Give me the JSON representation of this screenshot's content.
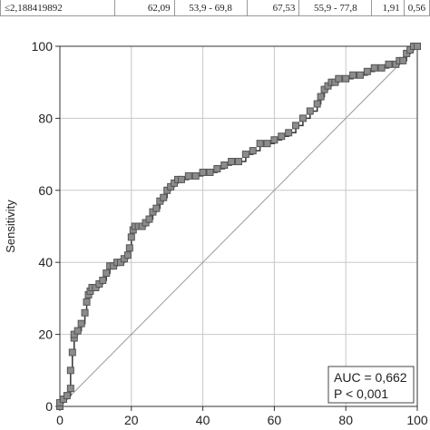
{
  "table_row": {
    "criterion": "≤2,188419892",
    "sensitivity": "62,09",
    "sensitivity_ci": "53,9 - 69,8",
    "specificity": "67,53",
    "specificity_ci": "55,9 - 77,8",
    "plr": "1,91",
    "nlr": "0,56"
  },
  "auc_box": {
    "line1": "AUC = 0,662",
    "line2": "P < 0,001"
  },
  "colors": {
    "marker_fill": "#8c8c8c",
    "marker_stroke": "#555555",
    "curve": "#333333",
    "diagonal": "#999999",
    "grid": "#c8c8c8"
  },
  "chart_data": {
    "type": "line",
    "ylabel": "Sensitivity",
    "xlabel": "",
    "xlim": [
      0,
      100
    ],
    "ylim": [
      0,
      100
    ],
    "xticks": [
      "0",
      "20",
      "40",
      "60",
      "80",
      "100"
    ],
    "yticks": [
      "0",
      "20",
      "40",
      "60",
      "80",
      "100"
    ],
    "grid": true,
    "reference_line": [
      [
        0,
        0
      ],
      [
        100,
        100
      ]
    ],
    "series": [
      {
        "x": [
          0,
          0,
          1,
          2,
          3,
          3,
          3.5,
          4,
          4,
          5,
          6,
          7,
          7.5,
          8,
          8.5,
          9,
          10,
          11,
          12,
          13,
          14,
          15,
          16,
          17,
          18,
          19,
          19.5,
          20,
          20.5,
          21,
          22,
          23,
          24,
          25,
          26,
          27,
          28,
          29,
          30,
          31,
          32,
          33,
          34,
          36,
          38,
          40,
          42,
          44,
          46,
          48,
          50,
          52,
          54,
          56,
          58,
          60,
          62,
          64,
          66,
          68,
          70,
          72,
          73,
          74,
          75,
          76,
          77,
          78,
          80,
          82,
          84,
          86,
          88,
          90,
          92,
          94,
          95,
          96,
          97,
          98,
          99,
          100
        ],
        "y": [
          0,
          1,
          2,
          3,
          5,
          10,
          15,
          19,
          20,
          21,
          23,
          26,
          29,
          31,
          32,
          33,
          33,
          34,
          35,
          37,
          39,
          39,
          40,
          40,
          41,
          42,
          44,
          47,
          49,
          50,
          50,
          50,
          51,
          52,
          54,
          55,
          57,
          58,
          60,
          61,
          62,
          63,
          63,
          64,
          64,
          65,
          65,
          66,
          67,
          68,
          68,
          70,
          71,
          73,
          73,
          74,
          75,
          76,
          78,
          80,
          82,
          84,
          86,
          88,
          89,
          90,
          90,
          91,
          91,
          92,
          92,
          93,
          94,
          94,
          95,
          95,
          96,
          96,
          98,
          99,
          100,
          100
        ]
      }
    ]
  }
}
